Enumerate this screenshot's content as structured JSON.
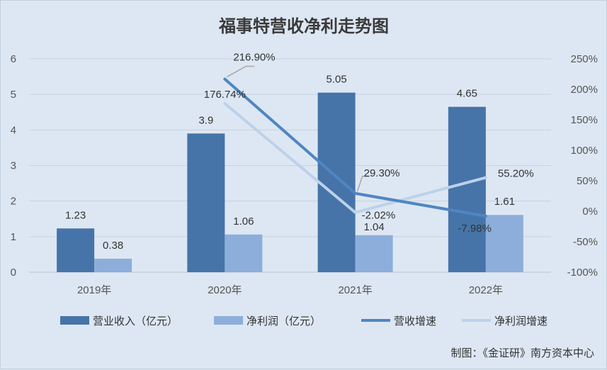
{
  "credit": "制图：《金证研》南方资本中心",
  "colors": {
    "revenue_bar": "#4674a8",
    "profit_bar": "#8daedb",
    "revenue_growth_line": "#4f86c1",
    "profit_growth_line": "#bdd1ea",
    "background": "#dde7f3"
  },
  "chart_data": {
    "type": "bar+line",
    "title": "福事特营收净利走势图",
    "categories": [
      "2019年",
      "2020年",
      "2021年",
      "2022年"
    ],
    "y_left": {
      "min": 0,
      "max": 6,
      "ticks": [
        "0",
        "1",
        "2",
        "3",
        "4",
        "5",
        "6"
      ]
    },
    "y_right": {
      "min": -100,
      "max": 250,
      "ticks": [
        "-100%",
        "-50%",
        "0%",
        "50%",
        "100%",
        "150%",
        "200%",
        "250%"
      ]
    },
    "grid": true,
    "legend_position": "bottom",
    "bar_series": [
      {
        "name": "营业收入（亿元）",
        "values": [
          1.23,
          3.9,
          5.05,
          4.65
        ],
        "labels": [
          "1.23",
          "3.9",
          "5.05",
          "4.65"
        ]
      },
      {
        "name": "净利润（亿元）",
        "values": [
          0.38,
          1.06,
          1.04,
          1.61
        ],
        "labels": [
          "0.38",
          "1.06",
          "1.04",
          "1.61"
        ]
      }
    ],
    "line_series": [
      {
        "name": "营收增速",
        "x": [
          "2020年",
          "2021年",
          "2022年"
        ],
        "values": [
          216.9,
          29.3,
          -7.98
        ],
        "labels": [
          "216.90%",
          "29.30%",
          "-7.98%"
        ]
      },
      {
        "name": "净利润增速",
        "x": [
          "2020年",
          "2021年",
          "2022年"
        ],
        "values": [
          176.74,
          -2.02,
          55.2
        ],
        "labels": [
          "176.74%",
          "-2.02%",
          "55.20%"
        ]
      }
    ]
  }
}
